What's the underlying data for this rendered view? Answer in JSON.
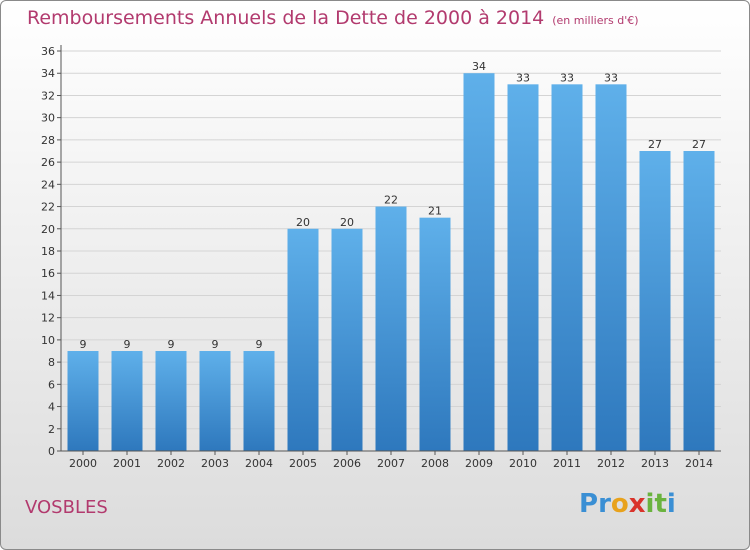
{
  "chart_data": {
    "type": "bar",
    "title": "Remboursements Annuels de la Dette de 2000 à 2014",
    "unit": "(en milliers d'€)",
    "categories": [
      "2000",
      "2001",
      "2002",
      "2003",
      "2004",
      "2005",
      "2006",
      "2007",
      "2008",
      "2009",
      "2010",
      "2011",
      "2012",
      "2013",
      "2014"
    ],
    "values": [
      9,
      9,
      9,
      9,
      9,
      20,
      20,
      22,
      21,
      34,
      33,
      33,
      33,
      27,
      27
    ],
    "ylim": [
      0,
      36
    ],
    "yticks": [
      0,
      2,
      4,
      6,
      8,
      10,
      12,
      14,
      16,
      18,
      20,
      22,
      24,
      26,
      28,
      30,
      32,
      34,
      36
    ],
    "grid": true,
    "bar_color": "#3a8fd4",
    "text_color": "#b23a6e"
  },
  "location": "VOSBLES",
  "brand": {
    "letters": [
      "P",
      "r",
      "o",
      "x",
      "i",
      "t",
      "i"
    ],
    "colors": [
      "#3a8fd4",
      "#3a8fd4",
      "#e8a21c",
      "#d9332b",
      "#6ab33e",
      "#6ab33e",
      "#3a8fd4"
    ]
  }
}
